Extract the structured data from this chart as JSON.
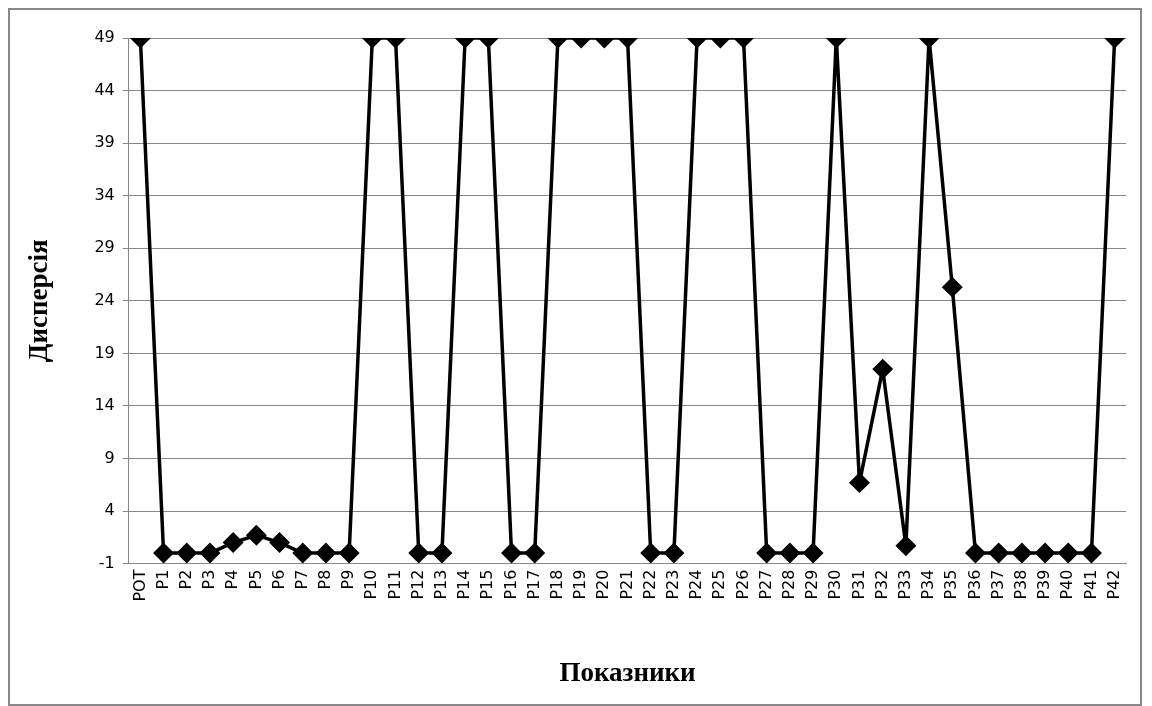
{
  "chart_data": {
    "type": "line",
    "xlabel": "Показники",
    "ylabel": "Дисперсія",
    "categories": [
      "POT",
      "P1",
      "P2",
      "P3",
      "P4",
      "P5",
      "P6",
      "P7",
      "P8",
      "P9",
      "P10",
      "P11",
      "P12",
      "P13",
      "P14",
      "P15",
      "P16",
      "P17",
      "P18",
      "P19",
      "P20",
      "P21",
      "P22",
      "P23",
      "P24",
      "P25",
      "P26",
      "P27",
      "P28",
      "P29",
      "P30",
      "P31",
      "P32",
      "P33",
      "P34",
      "P35",
      "P36",
      "P37",
      "P38",
      "P39",
      "P40",
      "P41",
      "P42"
    ],
    "series": [
      {
        "color": "#000000",
        "values": [
          49,
          0,
          0,
          0,
          1,
          1.7,
          1,
          0,
          0,
          0,
          49,
          49,
          0,
          0,
          49,
          49,
          0,
          0,
          49,
          49,
          49,
          49,
          0,
          0,
          49,
          49,
          49,
          0,
          0,
          0,
          49,
          6.7,
          17.5,
          0.7,
          49,
          25.3,
          0,
          0,
          0,
          0,
          0,
          0,
          49
        ]
      }
    ],
    "ylim": [
      -1,
      49
    ],
    "yticks": [
      -1,
      4,
      9,
      14,
      19,
      24,
      29,
      34,
      39,
      44,
      49
    ],
    "grid": "y",
    "legend": false,
    "marker": "diamond",
    "line_style": "solid"
  }
}
